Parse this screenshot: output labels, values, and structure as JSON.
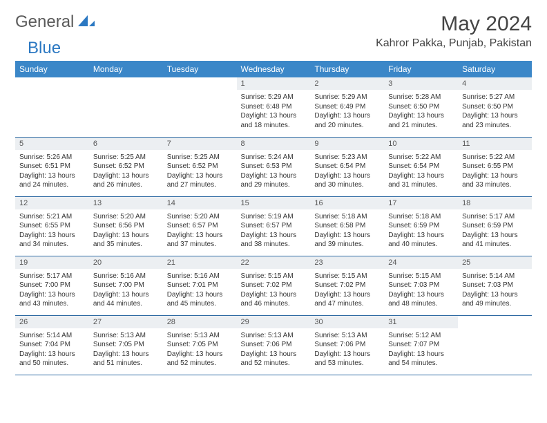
{
  "logo": {
    "part1": "General",
    "part2": "Blue"
  },
  "title": "May 2024",
  "location": "Kahror Pakka, Punjab, Pakistan",
  "colors": {
    "header_bg": "#3b87c8",
    "header_text": "#ffffff",
    "daynum_bg": "#eceff2",
    "row_border": "#2e6aa3",
    "body_text": "#333333",
    "logo_gray": "#5a5a5a",
    "logo_blue": "#2b78c2"
  },
  "typography": {
    "title_fontsize": 30,
    "location_fontsize": 16,
    "dayhead_fontsize": 12,
    "daynum_fontsize": 11,
    "cell_fontsize": 10
  },
  "day_names": [
    "Sunday",
    "Monday",
    "Tuesday",
    "Wednesday",
    "Thursday",
    "Friday",
    "Saturday"
  ],
  "weeks": [
    [
      null,
      null,
      null,
      {
        "n": "1",
        "sunrise": "5:29 AM",
        "sunset": "6:48 PM",
        "dl1": "Daylight: 13 hours",
        "dl2": "and 18 minutes."
      },
      {
        "n": "2",
        "sunrise": "5:29 AM",
        "sunset": "6:49 PM",
        "dl1": "Daylight: 13 hours",
        "dl2": "and 20 minutes."
      },
      {
        "n": "3",
        "sunrise": "5:28 AM",
        "sunset": "6:50 PM",
        "dl1": "Daylight: 13 hours",
        "dl2": "and 21 minutes."
      },
      {
        "n": "4",
        "sunrise": "5:27 AM",
        "sunset": "6:50 PM",
        "dl1": "Daylight: 13 hours",
        "dl2": "and 23 minutes."
      }
    ],
    [
      {
        "n": "5",
        "sunrise": "5:26 AM",
        "sunset": "6:51 PM",
        "dl1": "Daylight: 13 hours",
        "dl2": "and 24 minutes."
      },
      {
        "n": "6",
        "sunrise": "5:25 AM",
        "sunset": "6:52 PM",
        "dl1": "Daylight: 13 hours",
        "dl2": "and 26 minutes."
      },
      {
        "n": "7",
        "sunrise": "5:25 AM",
        "sunset": "6:52 PM",
        "dl1": "Daylight: 13 hours",
        "dl2": "and 27 minutes."
      },
      {
        "n": "8",
        "sunrise": "5:24 AM",
        "sunset": "6:53 PM",
        "dl1": "Daylight: 13 hours",
        "dl2": "and 29 minutes."
      },
      {
        "n": "9",
        "sunrise": "5:23 AM",
        "sunset": "6:54 PM",
        "dl1": "Daylight: 13 hours",
        "dl2": "and 30 minutes."
      },
      {
        "n": "10",
        "sunrise": "5:22 AM",
        "sunset": "6:54 PM",
        "dl1": "Daylight: 13 hours",
        "dl2": "and 31 minutes."
      },
      {
        "n": "11",
        "sunrise": "5:22 AM",
        "sunset": "6:55 PM",
        "dl1": "Daylight: 13 hours",
        "dl2": "and 33 minutes."
      }
    ],
    [
      {
        "n": "12",
        "sunrise": "5:21 AM",
        "sunset": "6:55 PM",
        "dl1": "Daylight: 13 hours",
        "dl2": "and 34 minutes."
      },
      {
        "n": "13",
        "sunrise": "5:20 AM",
        "sunset": "6:56 PM",
        "dl1": "Daylight: 13 hours",
        "dl2": "and 35 minutes."
      },
      {
        "n": "14",
        "sunrise": "5:20 AM",
        "sunset": "6:57 PM",
        "dl1": "Daylight: 13 hours",
        "dl2": "and 37 minutes."
      },
      {
        "n": "15",
        "sunrise": "5:19 AM",
        "sunset": "6:57 PM",
        "dl1": "Daylight: 13 hours",
        "dl2": "and 38 minutes."
      },
      {
        "n": "16",
        "sunrise": "5:18 AM",
        "sunset": "6:58 PM",
        "dl1": "Daylight: 13 hours",
        "dl2": "and 39 minutes."
      },
      {
        "n": "17",
        "sunrise": "5:18 AM",
        "sunset": "6:59 PM",
        "dl1": "Daylight: 13 hours",
        "dl2": "and 40 minutes."
      },
      {
        "n": "18",
        "sunrise": "5:17 AM",
        "sunset": "6:59 PM",
        "dl1": "Daylight: 13 hours",
        "dl2": "and 41 minutes."
      }
    ],
    [
      {
        "n": "19",
        "sunrise": "5:17 AM",
        "sunset": "7:00 PM",
        "dl1": "Daylight: 13 hours",
        "dl2": "and 43 minutes."
      },
      {
        "n": "20",
        "sunrise": "5:16 AM",
        "sunset": "7:00 PM",
        "dl1": "Daylight: 13 hours",
        "dl2": "and 44 minutes."
      },
      {
        "n": "21",
        "sunrise": "5:16 AM",
        "sunset": "7:01 PM",
        "dl1": "Daylight: 13 hours",
        "dl2": "and 45 minutes."
      },
      {
        "n": "22",
        "sunrise": "5:15 AM",
        "sunset": "7:02 PM",
        "dl1": "Daylight: 13 hours",
        "dl2": "and 46 minutes."
      },
      {
        "n": "23",
        "sunrise": "5:15 AM",
        "sunset": "7:02 PM",
        "dl1": "Daylight: 13 hours",
        "dl2": "and 47 minutes."
      },
      {
        "n": "24",
        "sunrise": "5:15 AM",
        "sunset": "7:03 PM",
        "dl1": "Daylight: 13 hours",
        "dl2": "and 48 minutes."
      },
      {
        "n": "25",
        "sunrise": "5:14 AM",
        "sunset": "7:03 PM",
        "dl1": "Daylight: 13 hours",
        "dl2": "and 49 minutes."
      }
    ],
    [
      {
        "n": "26",
        "sunrise": "5:14 AM",
        "sunset": "7:04 PM",
        "dl1": "Daylight: 13 hours",
        "dl2": "and 50 minutes."
      },
      {
        "n": "27",
        "sunrise": "5:13 AM",
        "sunset": "7:05 PM",
        "dl1": "Daylight: 13 hours",
        "dl2": "and 51 minutes."
      },
      {
        "n": "28",
        "sunrise": "5:13 AM",
        "sunset": "7:05 PM",
        "dl1": "Daylight: 13 hours",
        "dl2": "and 52 minutes."
      },
      {
        "n": "29",
        "sunrise": "5:13 AM",
        "sunset": "7:06 PM",
        "dl1": "Daylight: 13 hours",
        "dl2": "and 52 minutes."
      },
      {
        "n": "30",
        "sunrise": "5:13 AM",
        "sunset": "7:06 PM",
        "dl1": "Daylight: 13 hours",
        "dl2": "and 53 minutes."
      },
      {
        "n": "31",
        "sunrise": "5:12 AM",
        "sunset": "7:07 PM",
        "dl1": "Daylight: 13 hours",
        "dl2": "and 54 minutes."
      },
      null
    ]
  ],
  "labels": {
    "sunrise": "Sunrise: ",
    "sunset": "Sunset: "
  }
}
